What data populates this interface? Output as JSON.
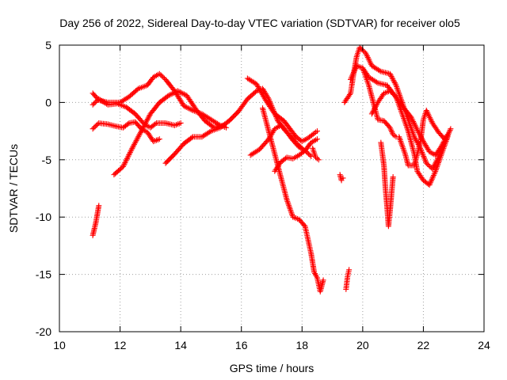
{
  "chart_data": {
    "type": "scatter",
    "title": "Day 256 of 2022, Sidereal Day-to-day VTEC variation (SDTVAR) for receiver olo5",
    "xlabel": "GPS time / hours",
    "ylabel": "SDTVAR / TECUs",
    "xlim": [
      10,
      24
    ],
    "ylim": [
      -20,
      5
    ],
    "xticks": [
      10,
      12,
      14,
      16,
      18,
      20,
      22,
      24
    ],
    "yticks": [
      -20,
      -15,
      -10,
      -5,
      0,
      5
    ],
    "grid": true,
    "marker": "+",
    "color": "#ff0000",
    "series": [
      {
        "name": "s1",
        "points": [
          [
            11.1,
            0.8
          ],
          [
            11.3,
            0.2
          ],
          [
            11.6,
            0.0
          ],
          [
            12.0,
            0.0
          ],
          [
            12.3,
            0.5
          ],
          [
            12.6,
            1.2
          ],
          [
            12.9,
            1.5
          ],
          [
            13.1,
            2.2
          ],
          [
            13.3,
            2.5
          ],
          [
            13.5,
            2.0
          ],
          [
            13.8,
            1.0
          ],
          [
            14.1,
            -0.3
          ],
          [
            14.4,
            -0.7
          ],
          [
            14.7,
            -1.0
          ],
          [
            15.0,
            -1.5
          ],
          [
            15.3,
            -2.0
          ],
          [
            15.5,
            -2.2
          ]
        ]
      },
      {
        "name": "s2",
        "points": [
          [
            11.1,
            -0.2
          ],
          [
            11.3,
            0.3
          ],
          [
            11.6,
            -0.2
          ],
          [
            11.9,
            -0.1
          ],
          [
            12.2,
            -0.4
          ],
          [
            12.5,
            -1.0
          ],
          [
            12.8,
            -1.9
          ],
          [
            13.0,
            -2.2
          ],
          [
            13.2,
            -1.8
          ],
          [
            13.5,
            -1.8
          ],
          [
            13.8,
            -2.0
          ],
          [
            14.0,
            -1.8
          ]
        ]
      },
      {
        "name": "s3",
        "points": [
          [
            11.1,
            -2.3
          ],
          [
            11.3,
            -1.8
          ],
          [
            11.6,
            -1.9
          ],
          [
            11.9,
            -2.1
          ],
          [
            12.1,
            -2.2
          ],
          [
            12.3,
            -1.8
          ],
          [
            12.5,
            -1.7
          ],
          [
            12.7,
            -2.3
          ],
          [
            12.9,
            -2.6
          ],
          [
            13.1,
            -3.4
          ],
          [
            13.3,
            -3.2
          ]
        ]
      },
      {
        "name": "s4",
        "points": [
          [
            11.8,
            -6.3
          ],
          [
            12.1,
            -5.6
          ],
          [
            12.4,
            -4.0
          ],
          [
            12.7,
            -2.5
          ],
          [
            13.0,
            -1.0
          ],
          [
            13.3,
            0.0
          ],
          [
            13.6,
            0.6
          ],
          [
            13.9,
            1.0
          ],
          [
            14.2,
            0.6
          ],
          [
            14.5,
            -0.6
          ],
          [
            14.8,
            -1.6
          ],
          [
            15.1,
            -2.2
          ],
          [
            15.4,
            -2.0
          ]
        ]
      },
      {
        "name": "s5",
        "points": [
          [
            13.5,
            -5.3
          ],
          [
            13.8,
            -4.5
          ],
          [
            14.1,
            -3.6
          ],
          [
            14.4,
            -3.0
          ],
          [
            14.7,
            -3.0
          ],
          [
            15.0,
            -2.5
          ],
          [
            15.3,
            -2.2
          ],
          [
            15.6,
            -1.6
          ],
          [
            15.9,
            -0.8
          ],
          [
            16.2,
            0.3
          ],
          [
            16.5,
            1.0
          ],
          [
            16.7,
            1.2
          ],
          [
            16.9,
            0.3
          ],
          [
            17.2,
            -1.6
          ],
          [
            17.5,
            -2.6
          ],
          [
            17.8,
            -3.5
          ],
          [
            18.0,
            -4.0
          ]
        ]
      },
      {
        "name": "s6",
        "points": [
          [
            16.2,
            2.1
          ],
          [
            16.5,
            1.6
          ],
          [
            16.8,
            0.2
          ],
          [
            17.1,
            -1.0
          ],
          [
            17.4,
            -1.6
          ],
          [
            17.6,
            -2.3
          ],
          [
            17.8,
            -3.0
          ],
          [
            18.0,
            -3.4
          ],
          [
            18.2,
            -3.1
          ],
          [
            18.4,
            -2.7
          ],
          [
            18.5,
            -2.5
          ]
        ]
      },
      {
        "name": "s7",
        "points": [
          [
            16.3,
            -4.6
          ],
          [
            16.6,
            -4.1
          ],
          [
            16.9,
            -3.2
          ],
          [
            17.1,
            -2.3
          ],
          [
            17.3,
            -2.0
          ],
          [
            17.5,
            -2.6
          ],
          [
            17.7,
            -3.3
          ],
          [
            17.9,
            -3.9
          ],
          [
            18.1,
            -4.2
          ],
          [
            18.3,
            -4.7
          ]
        ]
      },
      {
        "name": "s8",
        "points": [
          [
            17.1,
            -6.0
          ],
          [
            17.3,
            -5.2
          ],
          [
            17.5,
            -4.8
          ],
          [
            17.7,
            -4.9
          ],
          [
            17.9,
            -4.6
          ],
          [
            18.1,
            -4.2
          ],
          [
            18.3,
            -3.5
          ],
          [
            18.5,
            -3.2
          ]
        ]
      },
      {
        "name": "s9",
        "points": [
          [
            16.7,
            -0.5
          ],
          [
            16.9,
            -2.5
          ],
          [
            17.1,
            -4.5
          ],
          [
            17.3,
            -6.5
          ],
          [
            17.5,
            -8.5
          ],
          [
            17.7,
            -10.0
          ],
          [
            17.9,
            -10.2
          ],
          [
            18.1,
            -10.8
          ],
          [
            18.2,
            -12.0
          ],
          [
            18.3,
            -13.2
          ],
          [
            18.4,
            -14.8
          ],
          [
            18.5,
            -15.3
          ],
          [
            18.6,
            -16.5
          ],
          [
            18.7,
            -15.5
          ]
        ]
      },
      {
        "name": "s10",
        "points": [
          [
            18.35,
            -4.0
          ],
          [
            18.45,
            -4.8
          ],
          [
            18.55,
            -5.0
          ]
        ]
      },
      {
        "name": "s11",
        "points": [
          [
            19.25,
            -6.3
          ],
          [
            19.3,
            -6.8
          ],
          [
            19.35,
            -6.6
          ]
        ]
      },
      {
        "name": "s12",
        "points": [
          [
            19.45,
            -16.3
          ],
          [
            19.5,
            -15.2
          ],
          [
            19.55,
            -14.6
          ]
        ]
      },
      {
        "name": "s13",
        "points": [
          [
            11.1,
            -11.6
          ],
          [
            11.2,
            -10.5
          ],
          [
            11.3,
            -9.0
          ]
        ]
      },
      {
        "name": "s14",
        "points": [
          [
            19.4,
            0.0
          ],
          [
            19.6,
            0.8
          ],
          [
            19.7,
            2.5
          ],
          [
            19.8,
            4.0
          ],
          [
            19.9,
            4.8
          ],
          [
            20.1,
            4.3
          ],
          [
            20.3,
            3.2
          ],
          [
            20.6,
            2.7
          ],
          [
            20.9,
            2.5
          ],
          [
            21.1,
            1.5
          ],
          [
            21.3,
            0.0
          ],
          [
            21.5,
            -1.5
          ],
          [
            21.7,
            -3.0
          ],
          [
            21.9,
            -4.0
          ],
          [
            22.1,
            -5.3
          ],
          [
            22.3,
            -5.8
          ],
          [
            22.5,
            -4.8
          ],
          [
            22.7,
            -3.5
          ],
          [
            22.9,
            -2.3
          ]
        ]
      },
      {
        "name": "s15",
        "points": [
          [
            19.6,
            2.0
          ],
          [
            19.8,
            3.2
          ],
          [
            20.0,
            3.0
          ],
          [
            20.2,
            2.2
          ],
          [
            20.5,
            1.7
          ],
          [
            20.8,
            1.5
          ],
          [
            21.0,
            0.8
          ],
          [
            21.3,
            -0.3
          ],
          [
            21.6,
            -1.3
          ],
          [
            21.8,
            -2.4
          ],
          [
            22.0,
            -3.4
          ],
          [
            22.2,
            -4.3
          ],
          [
            22.4,
            -4.6
          ],
          [
            22.6,
            -3.8
          ],
          [
            22.8,
            -2.8
          ]
        ]
      },
      {
        "name": "s16",
        "points": [
          [
            20.0,
            3.0
          ],
          [
            20.2,
            1.5
          ],
          [
            20.4,
            -0.5
          ],
          [
            20.5,
            -1.5
          ],
          [
            20.7,
            -1.6
          ],
          [
            20.9,
            -2.2
          ],
          [
            21.0,
            -2.8
          ],
          [
            21.1,
            -3.0
          ]
        ]
      },
      {
        "name": "s17",
        "points": [
          [
            20.3,
            -1.0
          ],
          [
            20.5,
            0.0
          ],
          [
            20.7,
            0.8
          ],
          [
            20.9,
            1.0
          ],
          [
            21.1,
            0.5
          ],
          [
            21.3,
            -1.0
          ],
          [
            21.5,
            -2.5
          ],
          [
            21.7,
            -4.5
          ],
          [
            21.8,
            -6.0
          ],
          [
            22.0,
            -6.8
          ],
          [
            22.2,
            -7.2
          ],
          [
            22.4,
            -6.0
          ],
          [
            22.6,
            -4.5
          ],
          [
            22.8,
            -3.0
          ]
        ]
      },
      {
        "name": "s18",
        "points": [
          [
            21.2,
            -3.0
          ],
          [
            21.4,
            -4.5
          ],
          [
            21.5,
            -5.5
          ],
          [
            21.7,
            -5.5
          ],
          [
            21.9,
            -3.5
          ],
          [
            22.0,
            -1.5
          ],
          [
            22.1,
            -0.7
          ],
          [
            22.3,
            -1.8
          ],
          [
            22.5,
            -2.6
          ],
          [
            22.7,
            -3.2
          ]
        ]
      },
      {
        "name": "s19",
        "points": [
          [
            20.6,
            -3.5
          ],
          [
            20.7,
            -5.5
          ],
          [
            20.75,
            -7.5
          ],
          [
            20.8,
            -9.0
          ],
          [
            20.85,
            -10.8
          ],
          [
            20.9,
            -9.5
          ],
          [
            20.95,
            -8.0
          ],
          [
            21.0,
            -6.5
          ]
        ]
      }
    ]
  }
}
